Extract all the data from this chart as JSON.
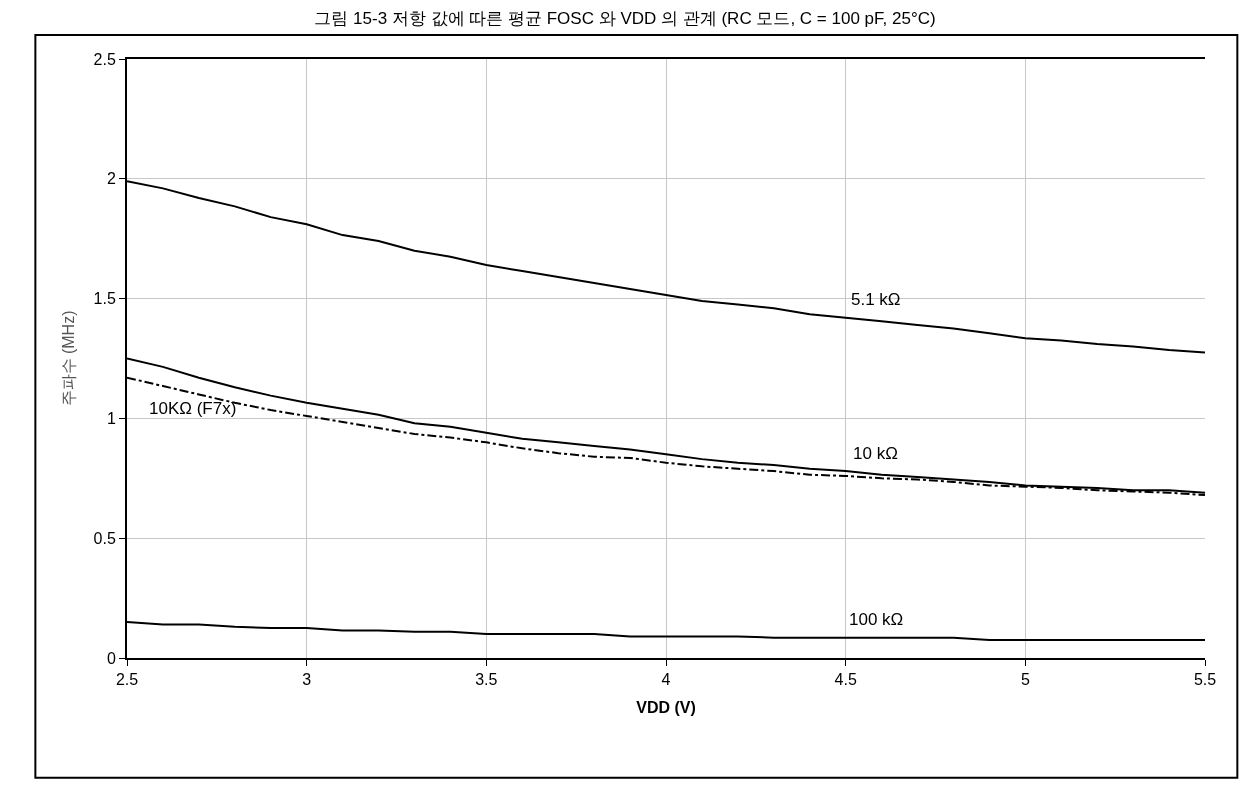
{
  "chart_data": {
    "type": "line",
    "title": "그림 15-3 저항 값에 따른 평균 FOSC 와 VDD 의 관계 (RC 모드, C = 100 pF, 25°C)",
    "xlabel": "VDD (V)",
    "ylabel": "주파수 (MHz)",
    "x": [
      2.5,
      2.6,
      2.7,
      2.8,
      2.9,
      3.0,
      3.1,
      3.2,
      3.3,
      3.4,
      3.5,
      3.6,
      3.7,
      3.8,
      3.9,
      4.0,
      4.1,
      4.2,
      4.3,
      4.4,
      4.5,
      4.6,
      4.7,
      4.8,
      4.9,
      5.0,
      5.1,
      5.2,
      5.3,
      5.4,
      5.5
    ],
    "series": [
      {
        "name": "5.1 kΩ",
        "color": "#000000",
        "line_style": "solid",
        "values": [
          1.99,
          1.96,
          1.92,
          1.885,
          1.84,
          1.81,
          1.765,
          1.74,
          1.7,
          1.675,
          1.64,
          1.615,
          1.59,
          1.565,
          1.54,
          1.515,
          1.49,
          1.475,
          1.46,
          1.435,
          1.42,
          1.405,
          1.39,
          1.375,
          1.355,
          1.335,
          1.325,
          1.31,
          1.3,
          1.285,
          1.275
        ]
      },
      {
        "name": "10 kΩ",
        "color": "#000000",
        "line_style": "solid",
        "values": [
          1.25,
          1.215,
          1.17,
          1.13,
          1.095,
          1.065,
          1.04,
          1.015,
          0.98,
          0.965,
          0.94,
          0.915,
          0.9,
          0.885,
          0.87,
          0.85,
          0.83,
          0.815,
          0.805,
          0.79,
          0.78,
          0.765,
          0.755,
          0.745,
          0.735,
          0.72,
          0.715,
          0.71,
          0.7,
          0.7,
          0.69
        ]
      },
      {
        "name": "100 kΩ",
        "color": "#000000",
        "line_style": "solid",
        "values": [
          0.15,
          0.14,
          0.14,
          0.13,
          0.125,
          0.125,
          0.115,
          0.115,
          0.11,
          0.11,
          0.1,
          0.1,
          0.1,
          0.1,
          0.09,
          0.09,
          0.09,
          0.09,
          0.085,
          0.085,
          0.085,
          0.085,
          0.085,
          0.085,
          0.075,
          0.075,
          0.075,
          0.075,
          0.075,
          0.075,
          0.075
        ]
      },
      {
        "name": "10KΩ (F7x)",
        "color": "#000000",
        "line_style": "dashdot",
        "values": [
          1.17,
          1.135,
          1.1,
          1.065,
          1.035,
          1.01,
          0.985,
          0.96,
          0.935,
          0.92,
          0.9,
          0.875,
          0.855,
          0.84,
          0.835,
          0.815,
          0.8,
          0.79,
          0.78,
          0.765,
          0.76,
          0.75,
          0.745,
          0.735,
          0.72,
          0.715,
          0.71,
          0.7,
          0.695,
          0.69,
          0.68
        ]
      }
    ],
    "xlim": [
      2.5,
      5.5
    ],
    "xticks": [
      2.5,
      3,
      3.5,
      4,
      4.5,
      5,
      5.5
    ],
    "ylim": [
      0,
      2.5
    ],
    "yticks": [
      0,
      0.5,
      1,
      1.5,
      2,
      2.5
    ],
    "grid": true,
    "legend": false,
    "marker": "none"
  }
}
